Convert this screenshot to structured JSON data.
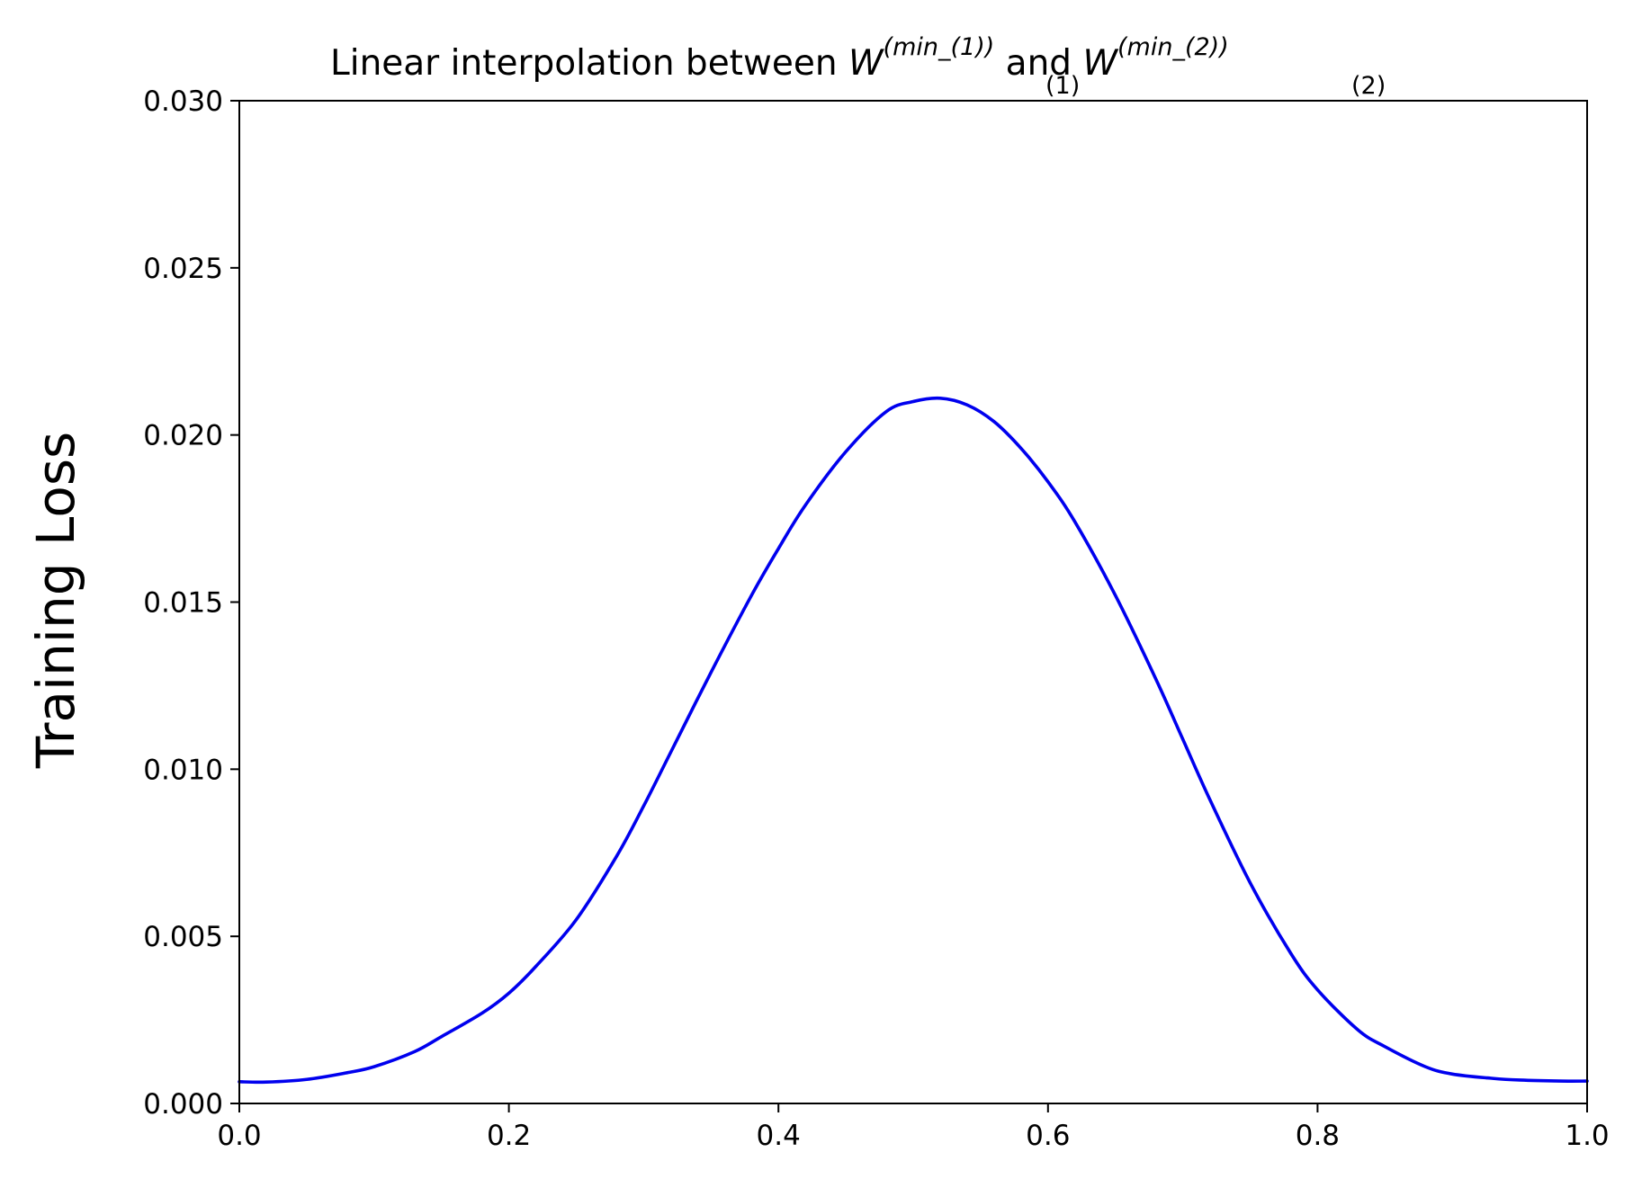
{
  "chart_data": {
    "type": "line",
    "title": {
      "prefix": "Linear interpolation between ",
      "w1_base": "W",
      "w1_sub": "(1)",
      "w1_sup": "(min_(1))",
      "connector": " and ",
      "w2_base": "W",
      "w2_sub": "(2)",
      "w2_sup": "(min_(2))"
    },
    "xlabel": "",
    "ylabel": "Training Loss",
    "xlim": [
      0.0,
      1.0
    ],
    "ylim": [
      0.0,
      0.03
    ],
    "xticks": [
      "0.0",
      "0.2",
      "0.4",
      "0.6",
      "0.8",
      "1.0"
    ],
    "yticks": [
      "0.000",
      "0.005",
      "0.010",
      "0.015",
      "0.020",
      "0.025",
      "0.030"
    ],
    "grid": false,
    "series": [
      {
        "color": "#0000ee",
        "x": [
          0.0,
          0.02,
          0.05,
          0.08,
          0.1,
          0.13,
          0.15,
          0.18,
          0.2,
          0.22,
          0.25,
          0.28,
          0.3,
          0.32,
          0.35,
          0.38,
          0.4,
          0.42,
          0.45,
          0.48,
          0.5,
          0.52,
          0.54,
          0.56,
          0.58,
          0.6,
          0.62,
          0.65,
          0.68,
          0.7,
          0.72,
          0.75,
          0.78,
          0.8,
          0.83,
          0.85,
          0.88,
          0.9,
          0.93,
          0.95,
          0.98,
          1.0
        ],
        "y": [
          0.00065,
          0.00064,
          0.00072,
          0.00092,
          0.0011,
          0.00155,
          0.002,
          0.0027,
          0.0033,
          0.0041,
          0.0055,
          0.0074,
          0.0089,
          0.0105,
          0.0129,
          0.0152,
          0.0166,
          0.0179,
          0.0195,
          0.0207,
          0.021,
          0.0211,
          0.0209,
          0.0204,
          0.0196,
          0.0186,
          0.0174,
          0.0152,
          0.0127,
          0.0109,
          0.0091,
          0.0066,
          0.0045,
          0.0034,
          0.0022,
          0.0017,
          0.0011,
          0.00088,
          0.00075,
          0.0007,
          0.00067,
          0.00067
        ]
      }
    ]
  }
}
